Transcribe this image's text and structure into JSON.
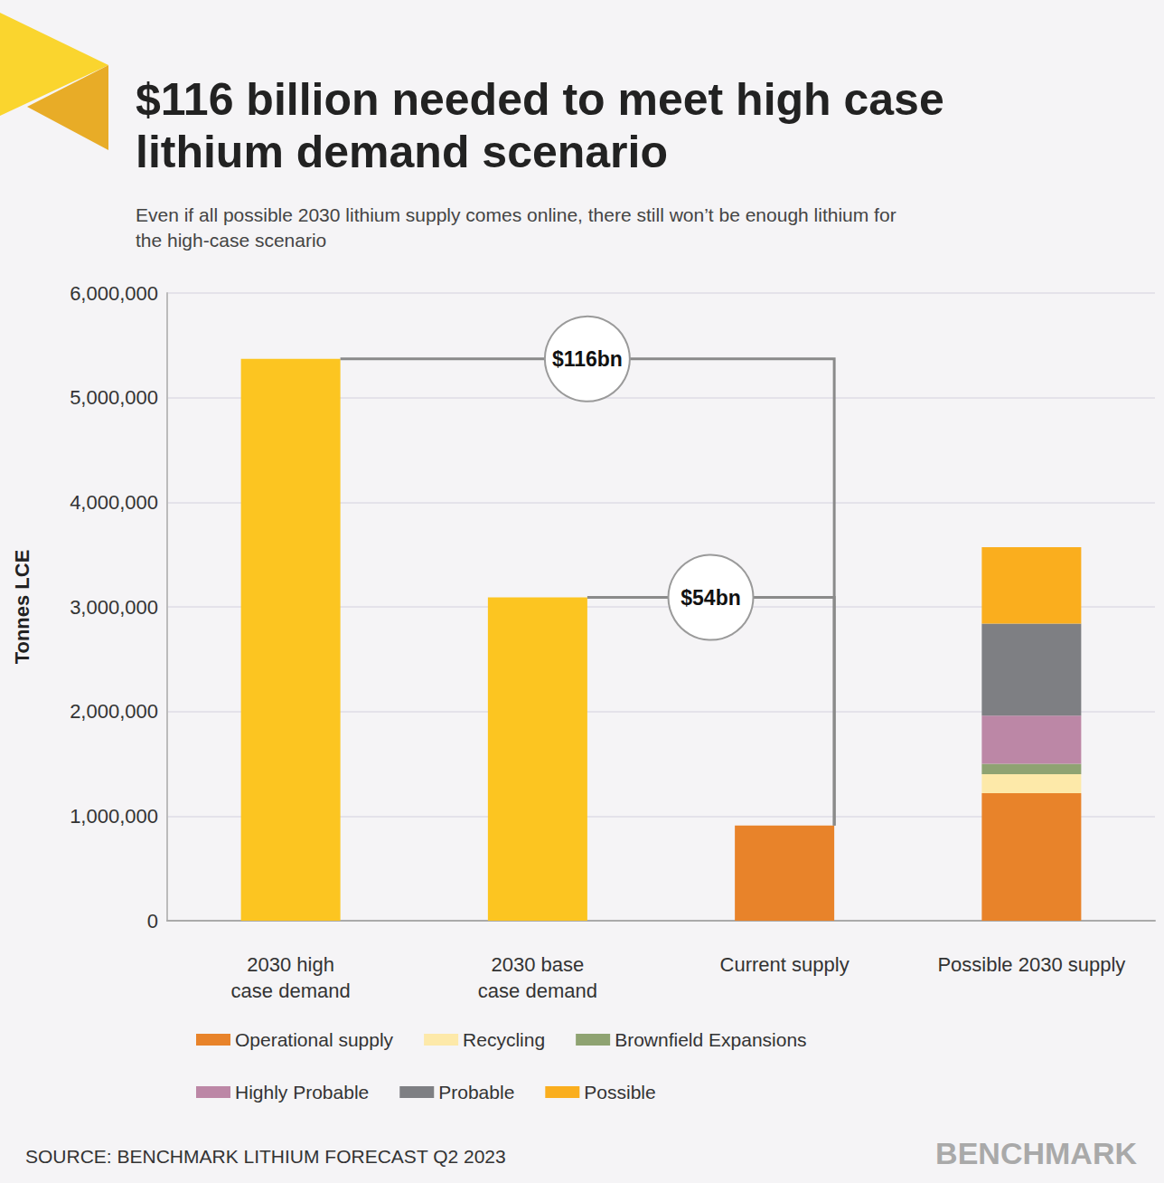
{
  "chart_data": {
    "type": "bar",
    "stacked": true,
    "title": "$116 billion needed to meet high case\nlithium demand scenario",
    "subtitle": "Even if all possible 2030 lithium supply comes online, there still won’t be enough lithium for\nthe high-case scenario",
    "ylabel": "Tonnes LCE",
    "categories": [
      "2030 high\ncase demand",
      "2030 base\ncase demand",
      "Current supply",
      "Possible 2030 supply"
    ],
    "demand": {
      "color": "#FCC521",
      "values": [
        5370000,
        3090000,
        null,
        null
      ]
    },
    "series": [
      {
        "name": "Operational supply",
        "color": "#E8832A",
        "values": [
          null,
          null,
          910000,
          1220000
        ]
      },
      {
        "name": "Recycling",
        "color": "#FDE9A9",
        "values": [
          null,
          null,
          null,
          180000
        ]
      },
      {
        "name": "Brownfield Expansions",
        "color": "#8FA372",
        "values": [
          null,
          null,
          null,
          100000
        ]
      },
      {
        "name": "Highly Probable",
        "color": "#BC87A6",
        "values": [
          null,
          null,
          null,
          460000
        ]
      },
      {
        "name": "Probable",
        "color": "#7E7F83",
        "values": [
          null,
          null,
          null,
          880000
        ]
      },
      {
        "name": "Possible",
        "color": "#FAAE1E",
        "values": [
          null,
          null,
          null,
          730000
        ]
      }
    ],
    "annotations": [
      {
        "text": "$116bn",
        "from": "2030 high\ncase demand",
        "to": "Current supply"
      },
      {
        "text": "$54bn",
        "from": "2030 base\ncase demand",
        "to": "Current supply"
      }
    ],
    "ylim": [
      0,
      6000000
    ],
    "yticks": [
      0,
      {
        "value": 1000000,
        "label": "1,000,000"
      },
      {
        "value": 2000000,
        "label": "2,000,000"
      },
      {
        "value": 3000000,
        "label": "3,000,000"
      },
      {
        "value": 4000000,
        "label": "4,000,000"
      },
      {
        "value": 5000000,
        "label": "5,000,000"
      },
      {
        "value": 6000000,
        "label": "6,000,000"
      }
    ],
    "grid": true,
    "legend": "bottom",
    "source": "SOURCE: BENCHMARK LITHIUM FORECAST Q2 2023",
    "logo": "BENCHMARK"
  }
}
